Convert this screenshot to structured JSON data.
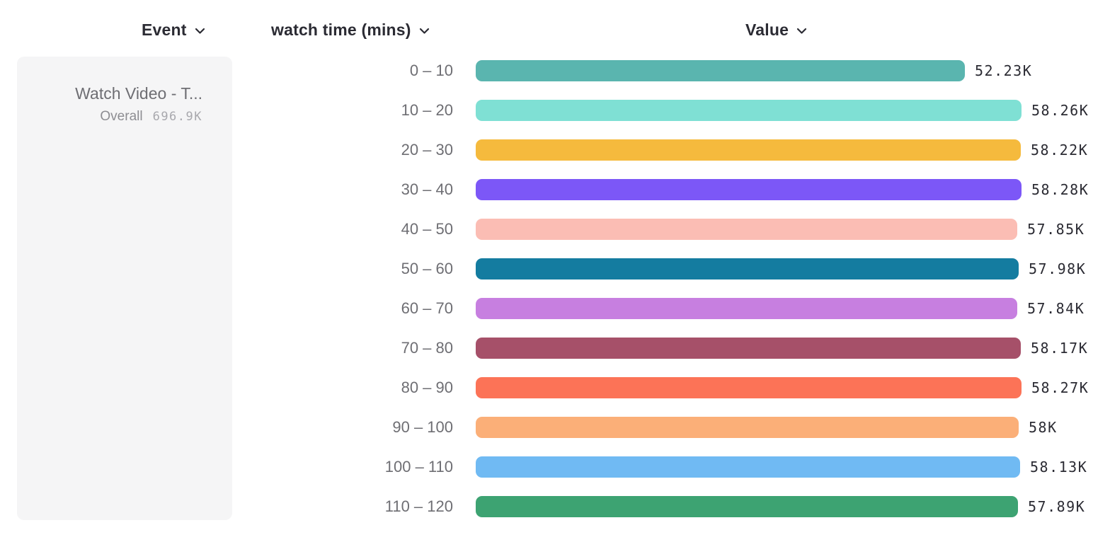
{
  "header": {
    "columns": [
      {
        "id": "event",
        "label": "Event"
      },
      {
        "id": "breakdown",
        "label": "watch time (mins)"
      },
      {
        "id": "value",
        "label": "Value"
      }
    ]
  },
  "icons": {
    "header_dropdown": "chevron-down-icon"
  },
  "event_panel": {
    "event_name": "Watch Video - T...",
    "overall_label": "Overall",
    "overall_value": "696.9K"
  },
  "chart_data": {
    "type": "bar",
    "orientation": "horizontal",
    "title": "",
    "xlabel": "Value",
    "ylabel": "watch time (mins)",
    "grid": false,
    "legend_position": "left",
    "categories": [
      "0 – 10",
      "10 – 20",
      "20 – 30",
      "30 – 40",
      "40 – 50",
      "50 – 60",
      "60 – 70",
      "70 – 80",
      "80 – 90",
      "90 – 100",
      "100 – 110",
      "110 – 120"
    ],
    "values": [
      52230,
      58260,
      58220,
      58280,
      57850,
      57980,
      57840,
      58170,
      58270,
      58000,
      58130,
      57890
    ],
    "value_labels": [
      "52.23K",
      "58.26K",
      "58.22K",
      "58.28K",
      "57.85K",
      "57.98K",
      "57.84K",
      "58.17K",
      "58.27K",
      "58K",
      "58.13K",
      "57.89K"
    ],
    "bar_colors": [
      "#5ab5af",
      "#7fe0d4",
      "#f5ba3d",
      "#7c57f7",
      "#fbbdb4",
      "#147ca0",
      "#c77fe0",
      "#a65069",
      "#fc7357",
      "#fbaf78",
      "#70baf3",
      "#3da372"
    ],
    "xlim": [
      0,
      58280
    ]
  },
  "layout_colors": {
    "background": "#ffffff",
    "panel_background": "#f5f5f6",
    "header_text": "#2b2b33",
    "category_text": "#6e6e73",
    "value_text": "#2b2b33"
  }
}
